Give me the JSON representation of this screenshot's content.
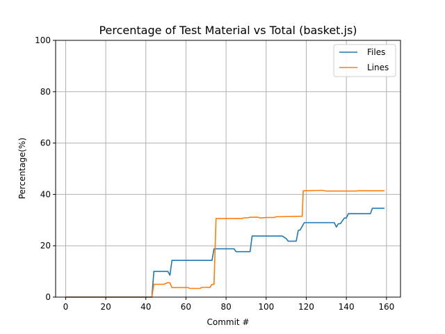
{
  "chart_data": {
    "type": "line",
    "title": "Percentage of Test Material vs Total (basket.js)",
    "xlabel": "Commit #",
    "ylabel": "Percentage(%)",
    "xlim": [
      -5,
      167
    ],
    "ylim": [
      0,
      100
    ],
    "xticks": [
      0,
      20,
      40,
      60,
      80,
      100,
      120,
      140,
      160
    ],
    "yticks": [
      0,
      20,
      40,
      60,
      80,
      100
    ],
    "grid": true,
    "legend": "top-right",
    "series": [
      {
        "name": "Files",
        "color": "#1f77b4",
        "points": [
          [
            0,
            0
          ],
          [
            43,
            0
          ],
          [
            44,
            10
          ],
          [
            51,
            10
          ],
          [
            52,
            8.5
          ],
          [
            53,
            14.3
          ],
          [
            73,
            14.3
          ],
          [
            74,
            18.8
          ],
          [
            84,
            18.8
          ],
          [
            85,
            17.7
          ],
          [
            92,
            17.7
          ],
          [
            93,
            23.8
          ],
          [
            108,
            23.8
          ],
          [
            110,
            22.8
          ],
          [
            111,
            21.8
          ],
          [
            115,
            21.8
          ],
          [
            116,
            25.9
          ],
          [
            117,
            26.2
          ],
          [
            119,
            29
          ],
          [
            134,
            29
          ],
          [
            135,
            27.3
          ],
          [
            136,
            28.6
          ],
          [
            137,
            28.6
          ],
          [
            139,
            30.8
          ],
          [
            140,
            30.8
          ],
          [
            141,
            32.5
          ],
          [
            152,
            32.5
          ],
          [
            153,
            34.6
          ],
          [
            159,
            34.6
          ]
        ]
      },
      {
        "name": "Lines",
        "color": "#ff7f0e",
        "points": [
          [
            0,
            0
          ],
          [
            43,
            0
          ],
          [
            44,
            5
          ],
          [
            49,
            5
          ],
          [
            51,
            5.7
          ],
          [
            52,
            5.5
          ],
          [
            53,
            3.7
          ],
          [
            61,
            3.7
          ],
          [
            62,
            3.4
          ],
          [
            67,
            3.4
          ],
          [
            68,
            3.8
          ],
          [
            72,
            3.8
          ],
          [
            73,
            5
          ],
          [
            74,
            5
          ],
          [
            75,
            30.6
          ],
          [
            84,
            30.6
          ],
          [
            88,
            30.6
          ],
          [
            89,
            30.9
          ],
          [
            91,
            30.9
          ],
          [
            92,
            31.1
          ],
          [
            96,
            31.1
          ],
          [
            97,
            30.8
          ],
          [
            100,
            31
          ],
          [
            104,
            31
          ],
          [
            105,
            31.3
          ],
          [
            118,
            31.5
          ],
          [
            118.5,
            41.4
          ],
          [
            128,
            41.6
          ],
          [
            130,
            41.3
          ],
          [
            145,
            41.3
          ],
          [
            146,
            41.4
          ],
          [
            159,
            41.4
          ]
        ]
      }
    ]
  }
}
